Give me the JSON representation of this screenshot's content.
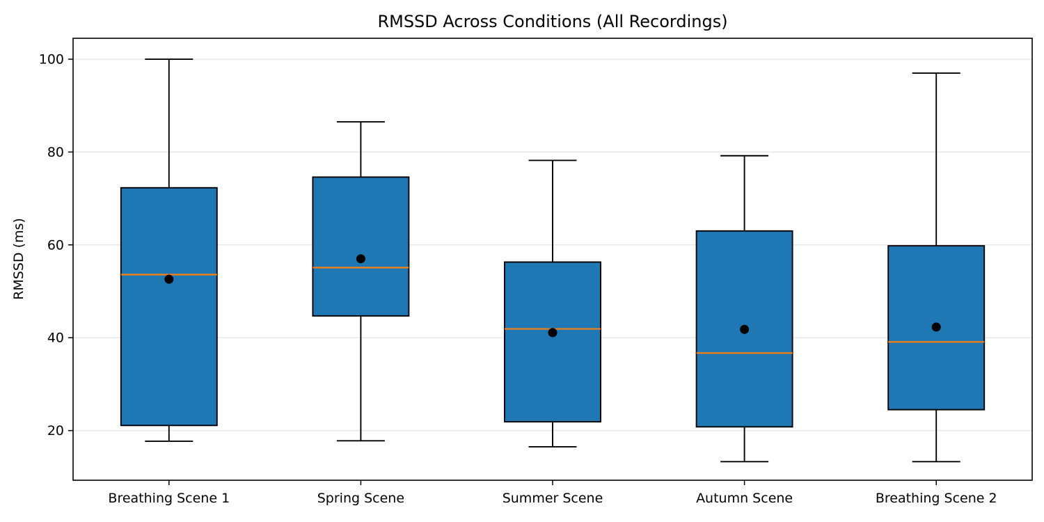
{
  "figure": {
    "background": "#ffffff"
  },
  "chart_data": {
    "type": "box",
    "title": "RMSSD Across Conditions (All Recordings)",
    "ylabel": "RMSSD (ms)",
    "xlabel": "",
    "categories": [
      "Breathing Scene 1",
      "Spring Scene",
      "Summer Scene",
      "Autumn Scene",
      "Breathing Scene 2"
    ],
    "series": [
      {
        "name": "Breathing Scene 1",
        "whisker_min": 17.7,
        "q1": 21.1,
        "median": 53.6,
        "mean": 52.6,
        "q3": 72.3,
        "whisker_max": 100.0
      },
      {
        "name": "Spring Scene",
        "whisker_min": 17.8,
        "q1": 44.7,
        "median": 55.1,
        "mean": 57.0,
        "q3": 74.6,
        "whisker_max": 86.5
      },
      {
        "name": "Summer Scene",
        "whisker_min": 16.5,
        "q1": 21.9,
        "median": 41.9,
        "mean": 41.1,
        "q3": 56.3,
        "whisker_max": 78.2
      },
      {
        "name": "Autumn Scene",
        "whisker_min": 13.3,
        "q1": 20.8,
        "median": 36.7,
        "mean": 41.8,
        "q3": 63.0,
        "whisker_max": 79.2
      },
      {
        "name": "Breathing Scene 2",
        "whisker_min": 13.3,
        "q1": 24.5,
        "median": 39.1,
        "mean": 42.3,
        "q3": 59.8,
        "whisker_max": 97.0
      }
    ],
    "yticks": [
      20,
      40,
      60,
      80,
      100
    ],
    "ylim": [
      9.3,
      104.5
    ],
    "grid": "horizontal",
    "legend": "none",
    "colors": {
      "box_fill": "#1f77b4",
      "box_edge": "#000000",
      "whisker": "#000000",
      "median": "#ff7f0e",
      "mean_marker": "#000000",
      "gridline": "#e6e6e6",
      "axis": "#000000",
      "background": "#ffffff"
    }
  }
}
